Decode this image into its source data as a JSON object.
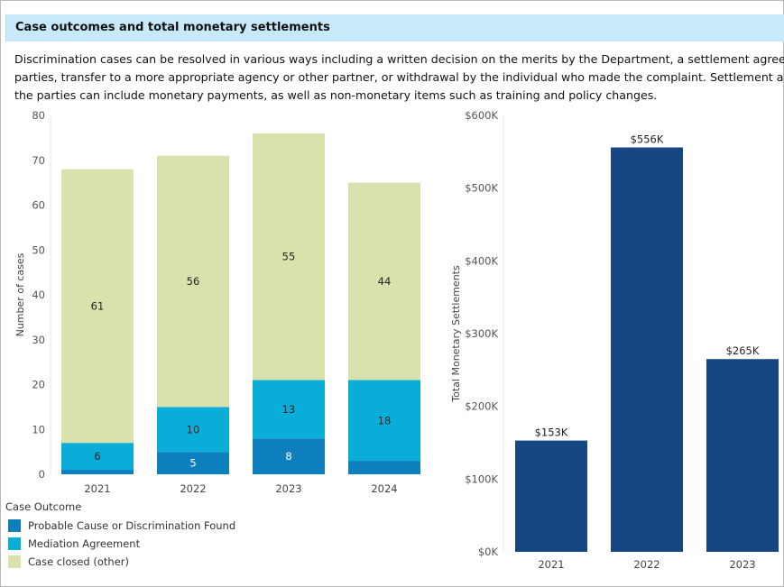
{
  "header": {
    "title": "Case outcomes and total monetary settlements"
  },
  "description": {
    "lines": [
      "Discrimination cases can be resolved in various ways including a written decision on the merits by the Department, a settlement agreement b",
      "parties, transfer to a more appropriate agency or other partner, or withdrawal by the individual who made the complaint. Settlement agreem",
      "the parties can include monetary payments, as well as non-monetary items such as training and policy changes."
    ]
  },
  "colors": {
    "probable": "#0e7fbd",
    "mediation": "#0aadd8",
    "closed": "#d8e2ac",
    "settlement": "#174783"
  },
  "legend": {
    "title": "Case Outcome",
    "items": [
      {
        "label": "Probable Cause or Discrimination Found",
        "color": "#0e7fbd"
      },
      {
        "label": "Mediation Agreement",
        "color": "#0aadd8"
      },
      {
        "label": "Case closed (other)",
        "color": "#d8e2ac"
      }
    ]
  },
  "chart_data": [
    {
      "type": "bar",
      "stacked": true,
      "title": "",
      "xlabel": "",
      "ylabel": "Number of cases",
      "ylim": [
        0,
        80
      ],
      "yticks": [
        "0",
        "10",
        "20",
        "30",
        "40",
        "50",
        "60",
        "70",
        "80"
      ],
      "categories": [
        "2021",
        "2022",
        "2023",
        "2024"
      ],
      "series": [
        {
          "name": "Probable Cause or Discrimination Found",
          "values": [
            1,
            5,
            8,
            3
          ],
          "labels": [
            "",
            "5",
            "8",
            ""
          ]
        },
        {
          "name": "Mediation Agreement",
          "values": [
            6,
            10,
            13,
            18
          ],
          "labels": [
            "6",
            "10",
            "13",
            "18"
          ]
        },
        {
          "name": "Case closed (other)",
          "values": [
            61,
            56,
            55,
            44
          ],
          "labels": [
            "61",
            "56",
            "55",
            "44"
          ]
        }
      ],
      "legend_position": "bottom-left"
    },
    {
      "type": "bar",
      "title": "",
      "xlabel": "",
      "ylabel": "Total Monetary Settlements",
      "ylim": [
        0,
        600000
      ],
      "yticks": [
        "$0K",
        "$100K",
        "$200K",
        "$300K",
        "$400K",
        "$500K",
        "$600K"
      ],
      "categories": [
        "2021",
        "2022",
        "2023"
      ],
      "values": [
        153000,
        556000,
        265000
      ],
      "labels": [
        "$153K",
        "$556K",
        "$265K"
      ]
    }
  ]
}
